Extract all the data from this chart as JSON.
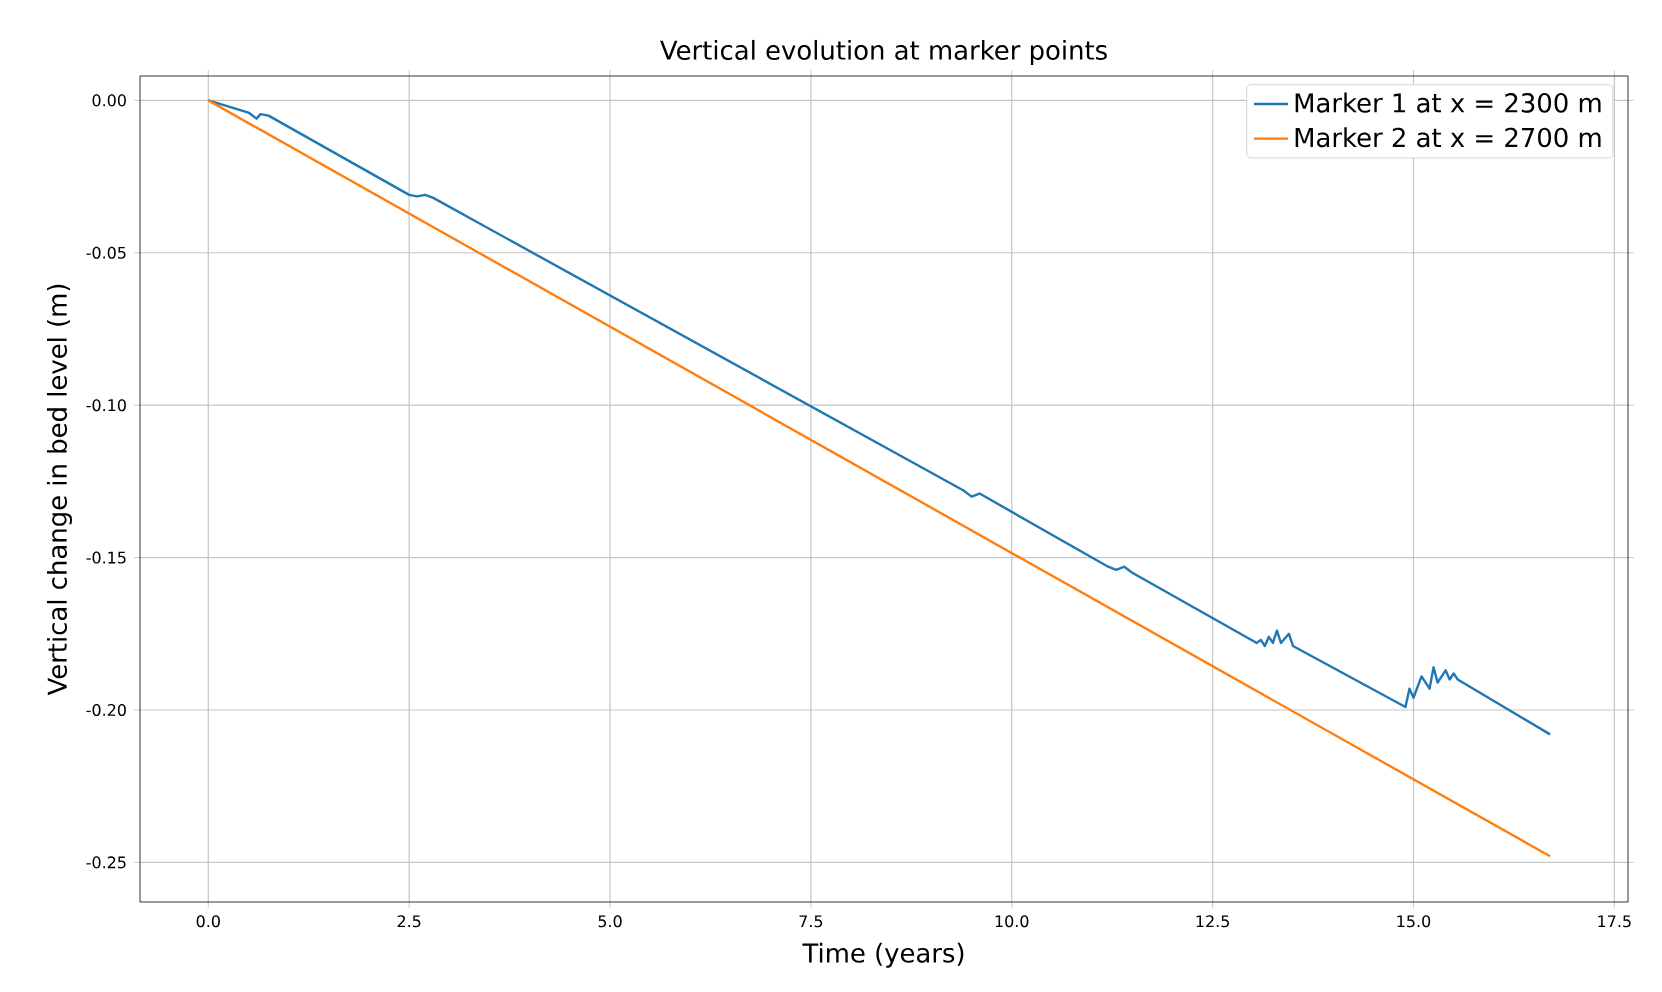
{
  "chart_data": {
    "type": "line",
    "title": "Vertical evolution at marker points",
    "xlabel": "Time (years)",
    "ylabel": "Vertical change in bed level (m)",
    "xlim": [
      -0.85,
      17.67
    ],
    "ylim": [
      -0.263,
      0.008
    ],
    "xticks": [
      {
        "value": 0,
        "label": "0.0"
      },
      2.5,
      {
        "value": 5,
        "label": "5.0"
      },
      7.5,
      {
        "value": 10,
        "label": "10.0"
      },
      12.5,
      {
        "value": 15,
        "label": "15.0"
      },
      17.5
    ],
    "yticks": [
      {
        "value": 0,
        "label": "0.00"
      },
      -0.05,
      {
        "value": -0.1,
        "label": "-0.10"
      },
      -0.15,
      {
        "value": -0.2,
        "label": "-0.20"
      },
      -0.25
    ],
    "grid": true,
    "legend": "top right",
    "series": [
      {
        "name": "Marker 1 at x = 2300 m",
        "color": "#1f77b4",
        "x": [
          0,
          0.5,
          0.6,
          0.65,
          0.75,
          2.5,
          2.6,
          2.7,
          2.8,
          9.4,
          9.5,
          9.6,
          11.2,
          11.3,
          11.4,
          11.5,
          13.05,
          13.1,
          13.15,
          13.2,
          13.25,
          13.3,
          13.35,
          13.45,
          13.5,
          14.9,
          14.95,
          15.0,
          15.1,
          15.2,
          15.25,
          15.3,
          15.4,
          15.45,
          15.5,
          15.55,
          16.7
        ],
        "values": [
          0,
          -0.004,
          -0.006,
          -0.0045,
          -0.005,
          -0.031,
          -0.0315,
          -0.031,
          -0.032,
          -0.128,
          -0.13,
          -0.129,
          -0.153,
          -0.154,
          -0.153,
          -0.155,
          -0.178,
          -0.177,
          -0.179,
          -0.176,
          -0.178,
          -0.174,
          -0.178,
          -0.175,
          -0.179,
          -0.199,
          -0.193,
          -0.196,
          -0.189,
          -0.193,
          -0.186,
          -0.191,
          -0.187,
          -0.19,
          -0.188,
          -0.19,
          -0.208
        ]
      },
      {
        "name": "Marker 2 at x = 2700 m",
        "color": "#ff7f0e",
        "x": [
          0,
          16.7
        ],
        "values": [
          0,
          -0.248
        ]
      }
    ]
  }
}
